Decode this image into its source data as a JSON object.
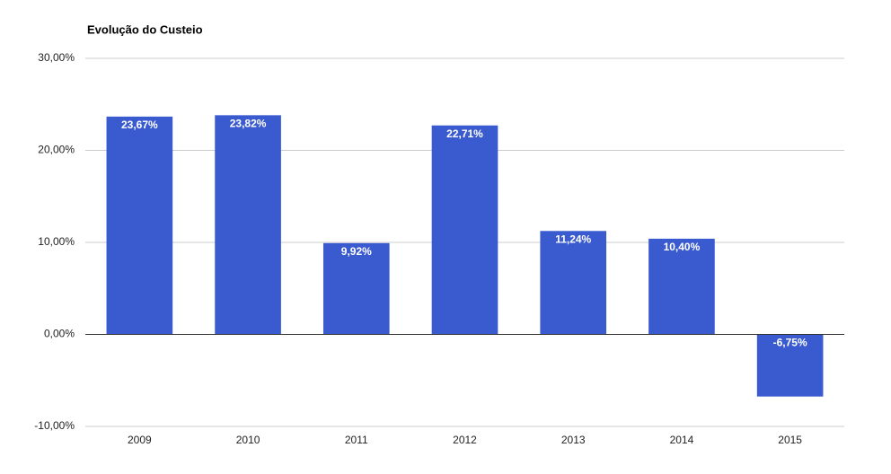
{
  "chart_data": {
    "type": "bar",
    "title": "Evolução do Custeio",
    "categories": [
      "2009",
      "2010",
      "2011",
      "2012",
      "2013",
      "2014",
      "2015"
    ],
    "values": [
      23.67,
      23.82,
      9.92,
      22.71,
      11.24,
      10.4,
      -6.75
    ],
    "value_labels": [
      "23,67%",
      "23,82%",
      "9,92%",
      "22,71%",
      "11,24%",
      "10,40%",
      "-6,75%"
    ],
    "color": "#3a5bd0",
    "ylim": [
      -10,
      30
    ],
    "yticks": [
      {
        "value": -10,
        "label": "-10,00%"
      },
      {
        "value": 0,
        "label": "0,00%"
      },
      {
        "value": 10,
        "label": "10,00%"
      },
      {
        "value": 20,
        "label": "20,00%"
      },
      {
        "value": 30,
        "label": "30,00%"
      }
    ],
    "grid": true
  }
}
